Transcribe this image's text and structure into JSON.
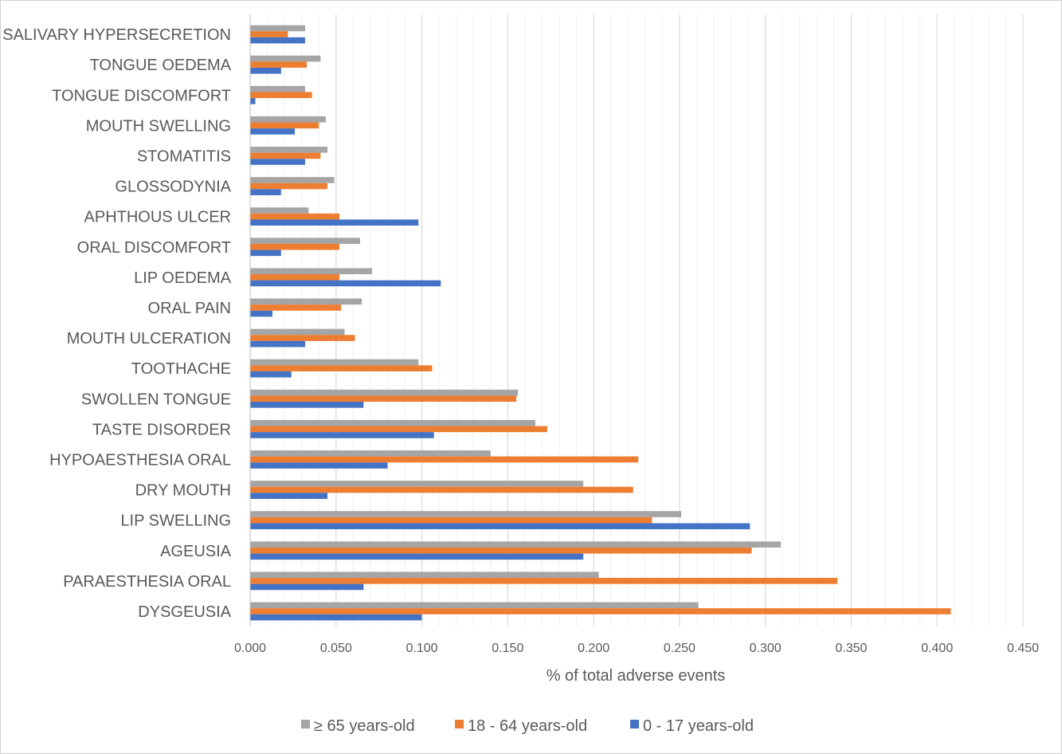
{
  "chart_data": {
    "type": "bar",
    "orientation": "horizontal",
    "categories": [
      "DYSGEUSIA",
      "PARAESTHESIA ORAL",
      "AGEUSIA",
      "LIP SWELLING",
      "DRY MOUTH",
      "HYPOAESTHESIA ORAL",
      "TASTE DISORDER",
      "SWOLLEN TONGUE",
      "TOOTHACHE",
      "MOUTH ULCERATION",
      "ORAL PAIN",
      "LIP OEDEMA",
      "ORAL DISCOMFORT",
      "APHTHOUS ULCER",
      "GLOSSODYNIA",
      "STOMATITIS",
      "MOUTH SWELLING",
      "TONGUE DISCOMFORT",
      "TONGUE OEDEMA",
      "SALIVARY HYPERSECRETION"
    ],
    "series": [
      {
        "name": "≥ 65 years-old",
        "color": "#a5a5a5",
        "values": [
          0.261,
          0.203,
          0.309,
          0.251,
          0.194,
          0.14,
          0.166,
          0.156,
          0.098,
          0.055,
          0.065,
          0.071,
          0.064,
          0.034,
          0.049,
          0.045,
          0.044,
          0.032,
          0.041,
          0.032
        ]
      },
      {
        "name": "18 - 64 years-old",
        "color": "#ed7d31",
        "values": [
          0.408,
          0.342,
          0.292,
          0.234,
          0.223,
          0.226,
          0.173,
          0.155,
          0.106,
          0.061,
          0.053,
          0.052,
          0.052,
          0.052,
          0.045,
          0.041,
          0.04,
          0.036,
          0.033,
          0.022
        ]
      },
      {
        "name": "0 - 17 years-old",
        "color": "#4472c4",
        "values": [
          0.1,
          0.066,
          0.194,
          0.291,
          0.045,
          0.08,
          0.107,
          0.066,
          0.024,
          0.032,
          0.013,
          0.111,
          0.018,
          0.098,
          0.018,
          0.032,
          0.026,
          0.003,
          0.018,
          0.032
        ]
      }
    ],
    "xlabel": "% of total adverse events",
    "xlim": [
      0,
      0.45
    ],
    "x_ticks": [
      "0.000",
      "0.050",
      "0.100",
      "0.150",
      "0.200",
      "0.250",
      "0.300",
      "0.350",
      "0.400",
      "0.450"
    ],
    "grid": "vertical major and minor",
    "legend_position": "bottom"
  }
}
